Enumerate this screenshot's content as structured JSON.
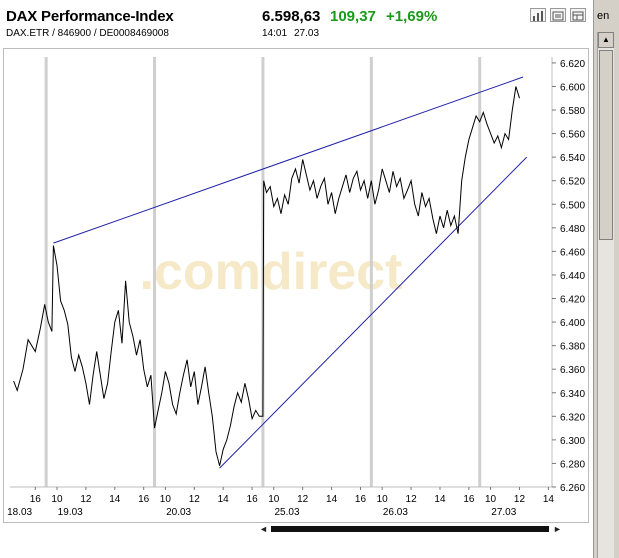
{
  "quote": {
    "title": "DAX Performance-Index",
    "subtitle": "DAX.ETR  /  846900  /  DE0008469008",
    "price": "6.598,63",
    "change": "109,37",
    "change_pct": "+1,69%",
    "time": "14:01",
    "date": "27.03",
    "change_color": "#1a9a1a"
  },
  "toolbar": {
    "icons": [
      "bar-chart-icon",
      "news-icon",
      "settings-icon"
    ],
    "right_tab_text": "en"
  },
  "chart_data": {
    "type": "line",
    "watermark": ".comdirect",
    "y_ticks": [
      "6.620",
      "6.600",
      "6.580",
      "6.560",
      "6.540",
      "6.520",
      "6.500",
      "6.480",
      "6.460",
      "6.440",
      "6.420",
      "6.400",
      "6.380",
      "6.360",
      "6.340",
      "6.320",
      "6.300",
      "6.280",
      "6.260"
    ],
    "ylim": [
      6260,
      6625
    ],
    "x_hour_labels": [
      {
        "label": "16",
        "t": 3.5
      },
      {
        "label": "10",
        "t": 6.5
      },
      {
        "label": "12",
        "t": 10.5
      },
      {
        "label": "14",
        "t": 14.5
      },
      {
        "label": "16",
        "t": 18.5
      },
      {
        "label": "10",
        "t": 21.5
      },
      {
        "label": "12",
        "t": 25.5
      },
      {
        "label": "14",
        "t": 29.5
      },
      {
        "label": "16",
        "t": 33.5
      },
      {
        "label": "10",
        "t": 36.5
      },
      {
        "label": "12",
        "t": 40.5
      },
      {
        "label": "14",
        "t": 44.5
      },
      {
        "label": "16",
        "t": 48.5
      },
      {
        "label": "10",
        "t": 51.5
      },
      {
        "label": "12",
        "t": 55.5
      },
      {
        "label": "14",
        "t": 59.5
      },
      {
        "label": "16",
        "t": 63.5
      },
      {
        "label": "10",
        "t": 66.5
      },
      {
        "label": "12",
        "t": 70.5
      },
      {
        "label": "14",
        "t": 74.5
      }
    ],
    "x_date_labels": [
      {
        "label": "18.03",
        "t": 0.5
      },
      {
        "label": "19.03",
        "t": 7.5
      },
      {
        "label": "20.03",
        "t": 22.5
      },
      {
        "label": "25.03",
        "t": 37.5
      },
      {
        "label": "26.03",
        "t": 52.5
      },
      {
        "label": "27.03",
        "t": 67.5
      }
    ],
    "day_separators": [
      5,
      20,
      35,
      50,
      65
    ],
    "series": [
      {
        "points": [
          [
            0.5,
            6350
          ],
          [
            1,
            6342
          ],
          [
            1.8,
            6360
          ],
          [
            2.5,
            6385
          ],
          [
            3.5,
            6375
          ],
          [
            4.2,
            6395
          ],
          [
            4.8,
            6415
          ],
          [
            5.3,
            6400
          ],
          [
            5.8,
            6392
          ],
          [
            6,
            6465
          ],
          [
            6.5,
            6448
          ],
          [
            7,
            6418
          ],
          [
            7.5,
            6410
          ],
          [
            8,
            6398
          ],
          [
            8.5,
            6370
          ],
          [
            9,
            6358
          ],
          [
            9.5,
            6372
          ],
          [
            10,
            6362
          ],
          [
            10.5,
            6348
          ],
          [
            11,
            6330
          ],
          [
            11.5,
            6355
          ],
          [
            12,
            6375
          ],
          [
            12.5,
            6355
          ],
          [
            13,
            6335
          ],
          [
            13.5,
            6348
          ],
          [
            14,
            6375
          ],
          [
            14.5,
            6400
          ],
          [
            15,
            6410
          ],
          [
            15.5,
            6382
          ],
          [
            16,
            6435
          ],
          [
            16.5,
            6400
          ],
          [
            17,
            6388
          ],
          [
            17.5,
            6372
          ],
          [
            18,
            6385
          ],
          [
            18.5,
            6360
          ],
          [
            19,
            6345
          ],
          [
            19.5,
            6355
          ],
          [
            20,
            6310
          ],
          [
            20.5,
            6325
          ],
          [
            21,
            6340
          ],
          [
            21.5,
            6358
          ],
          [
            22,
            6348
          ],
          [
            22.5,
            6330
          ],
          [
            23,
            6322
          ],
          [
            23.5,
            6340
          ],
          [
            24,
            6355
          ],
          [
            24.5,
            6368
          ],
          [
            25,
            6345
          ],
          [
            25.5,
            6358
          ],
          [
            26,
            6330
          ],
          [
            26.5,
            6345
          ],
          [
            27,
            6362
          ],
          [
            27.5,
            6340
          ],
          [
            28,
            6320
          ],
          [
            28.5,
            6290
          ],
          [
            29,
            6278
          ],
          [
            29.5,
            6292
          ],
          [
            30,
            6300
          ],
          [
            30.5,
            6312
          ],
          [
            31,
            6328
          ],
          [
            31.5,
            6340
          ],
          [
            32,
            6332
          ],
          [
            32.5,
            6348
          ],
          [
            33,
            6335
          ],
          [
            33.5,
            6318
          ],
          [
            34,
            6325
          ],
          [
            34.5,
            6320
          ],
          [
            35,
            6320
          ],
          [
            35.1,
            6520
          ],
          [
            35.5,
            6510
          ],
          [
            36,
            6515
          ],
          [
            36.5,
            6498
          ],
          [
            37,
            6505
          ],
          [
            37.5,
            6492
          ],
          [
            38,
            6508
          ],
          [
            38.5,
            6500
          ],
          [
            39,
            6522
          ],
          [
            39.5,
            6530
          ],
          [
            40,
            6518
          ],
          [
            40.5,
            6538
          ],
          [
            41,
            6525
          ],
          [
            41.5,
            6512
          ],
          [
            42,
            6520
          ],
          [
            42.5,
            6505
          ],
          [
            43,
            6515
          ],
          [
            43.5,
            6522
          ],
          [
            44,
            6500
          ],
          [
            44.5,
            6510
          ],
          [
            45,
            6492
          ],
          [
            45.5,
            6505
          ],
          [
            46,
            6515
          ],
          [
            46.5,
            6525
          ],
          [
            47,
            6510
          ],
          [
            47.5,
            6522
          ],
          [
            48,
            6528
          ],
          [
            48.5,
            6512
          ],
          [
            49,
            6520
          ],
          [
            49.5,
            6505
          ],
          [
            50,
            6520
          ],
          [
            50.5,
            6500
          ],
          [
            51,
            6512
          ],
          [
            51.5,
            6530
          ],
          [
            52,
            6520
          ],
          [
            52.5,
            6510
          ],
          [
            53,
            6528
          ],
          [
            53.5,
            6515
          ],
          [
            54,
            6522
          ],
          [
            54.5,
            6505
          ],
          [
            55,
            6512
          ],
          [
            55.5,
            6520
          ],
          [
            56,
            6500
          ],
          [
            56.5,
            6490
          ],
          [
            57,
            6510
          ],
          [
            57.5,
            6498
          ],
          [
            58,
            6505
          ],
          [
            58.5,
            6488
          ],
          [
            59,
            6475
          ],
          [
            59.5,
            6490
          ],
          [
            60,
            6480
          ],
          [
            60.5,
            6495
          ],
          [
            61,
            6482
          ],
          [
            61.5,
            6490
          ],
          [
            62,
            6475
          ],
          [
            62.5,
            6520
          ],
          [
            63,
            6540
          ],
          [
            63.5,
            6555
          ],
          [
            64,
            6565
          ],
          [
            64.5,
            6575
          ],
          [
            65,
            6570
          ],
          [
            65.5,
            6578
          ],
          [
            66,
            6568
          ],
          [
            66.5,
            6560
          ],
          [
            67,
            6552
          ],
          [
            67.5,
            6558
          ],
          [
            68,
            6548
          ],
          [
            68.5,
            6560
          ],
          [
            69,
            6555
          ],
          [
            69.5,
            6580
          ],
          [
            70,
            6600
          ],
          [
            70.5,
            6590
          ]
        ]
      }
    ],
    "trendlines": [
      {
        "from": [
          6,
          6467
        ],
        "to": [
          71,
          6608
        ]
      },
      {
        "from": [
          29,
          6276
        ],
        "to": [
          71.5,
          6540
        ]
      }
    ]
  },
  "scrollbar": {
    "left_arrow": "◄",
    "right_arrow": "►",
    "up_arrow": "▲"
  }
}
